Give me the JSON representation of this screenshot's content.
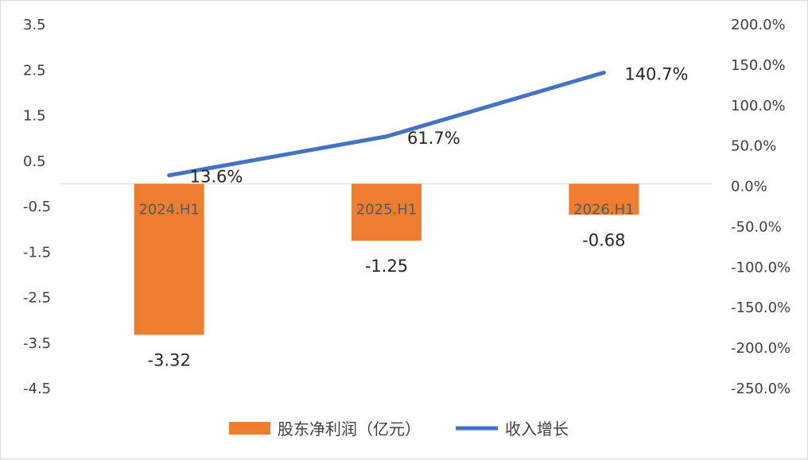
{
  "chart_data": {
    "type": "bar+line",
    "categories": [
      "2024.H1",
      "2025.H1",
      "2026.H1"
    ],
    "bar_series": {
      "name": "股东净利润（亿元）",
      "values": [
        -3.32,
        -1.25,
        -0.68
      ],
      "labels": [
        "-3.32",
        "-1.25",
        "-0.68"
      ],
      "color": "#ED7D31",
      "axis": "left"
    },
    "line_series": {
      "name": "收入增长",
      "values": [
        13.6,
        61.7,
        140.7
      ],
      "labels": [
        "13.6%",
        "61.7%",
        "140.7%"
      ],
      "color": "#4472C4",
      "axis": "right"
    },
    "left_axis": {
      "ylim": [
        -4.5,
        3.5
      ],
      "ticks": [
        3.5,
        2.5,
        1.5,
        0.5,
        -0.5,
        -1.5,
        -2.5,
        -3.5,
        -4.5
      ],
      "tick_labels": [
        "3.5",
        "2.5",
        "1.5",
        "0.5",
        "-0.5",
        "-1.5",
        "-2.5",
        "-3.5",
        "-4.5"
      ]
    },
    "right_axis": {
      "ylim": [
        -250,
        200
      ],
      "ticks": [
        200,
        150,
        100,
        50,
        0,
        -50,
        -100,
        -150,
        -200,
        -250
      ],
      "tick_labels": [
        "200.0%",
        "150.0%",
        "100.0%",
        "50.0%",
        "0.0%",
        "-50.0%",
        "-100.0%",
        "-150.0%",
        "-200.0%",
        "-250.0%"
      ]
    },
    "grid": false,
    "legend_position": "bottom"
  }
}
